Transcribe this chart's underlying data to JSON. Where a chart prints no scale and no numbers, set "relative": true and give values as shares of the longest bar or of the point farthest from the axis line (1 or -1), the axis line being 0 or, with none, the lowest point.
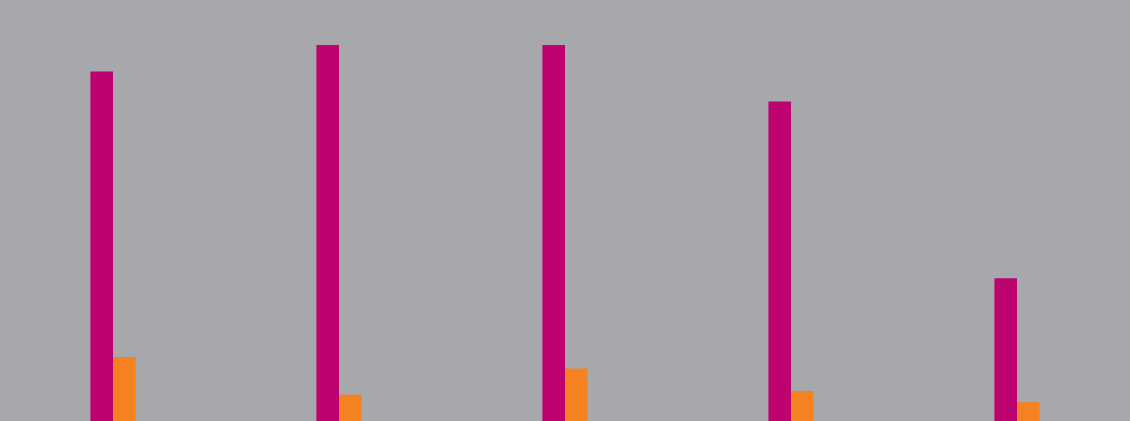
{
  "chart_data": {
    "type": "bar",
    "relative": true,
    "grid": false,
    "legend": false,
    "tick_labels": false,
    "categories": [
      null,
      null,
      null,
      null,
      null
    ],
    "series": [
      {
        "color": "#bc0370",
        "values": [
          0.93,
          1,
          1,
          0.85,
          0.38
        ]
      },
      {
        "color": "#f58220",
        "values": [
          0.17,
          0.07,
          0.14,
          0.08,
          0.05
        ]
      }
    ]
  }
}
